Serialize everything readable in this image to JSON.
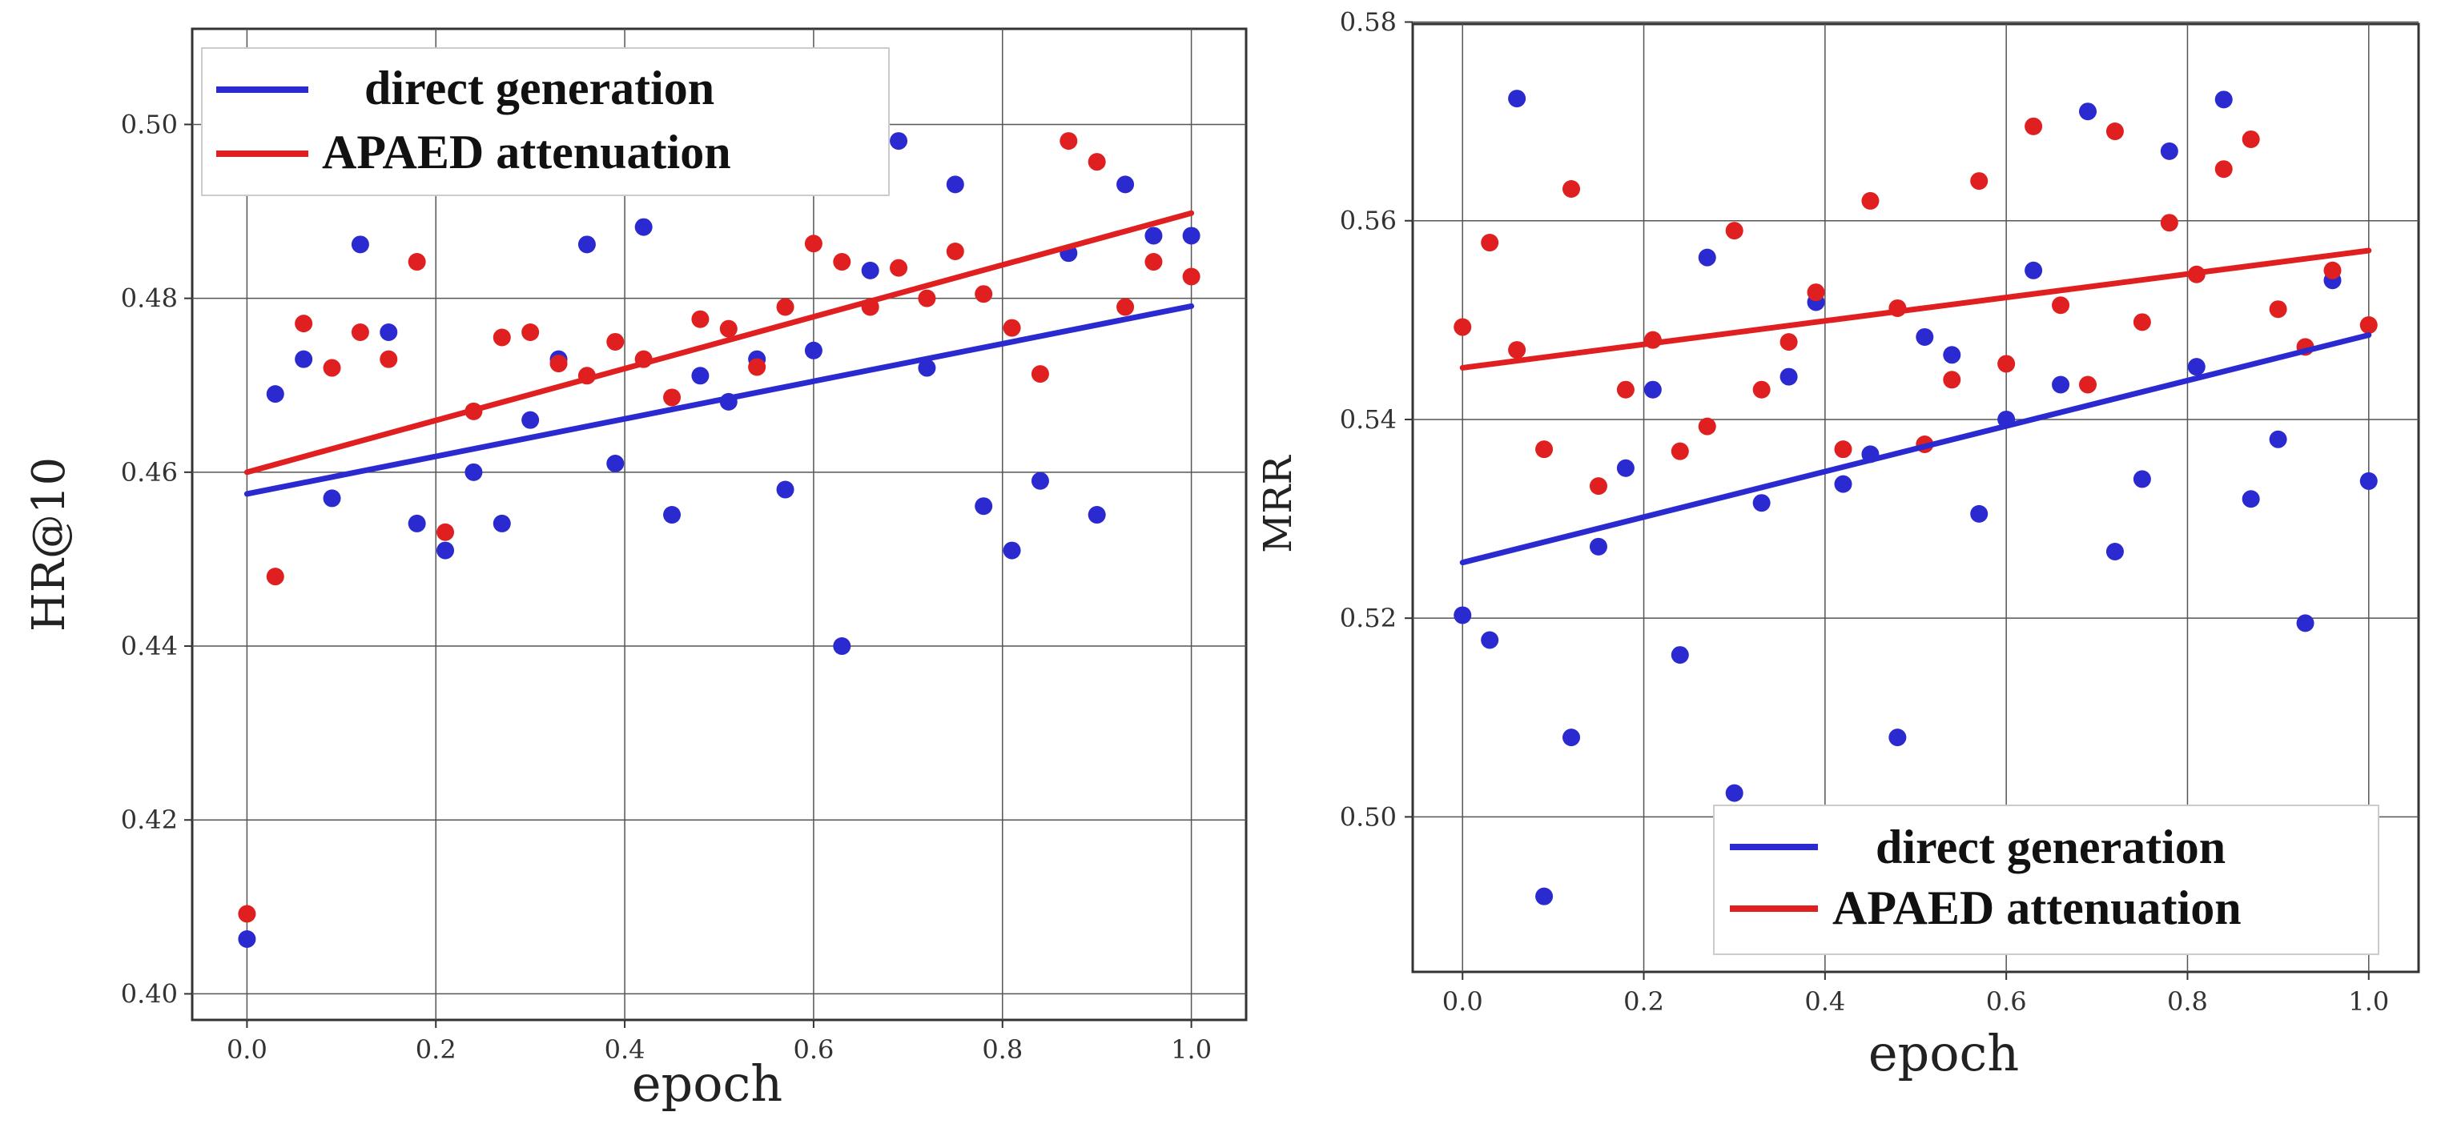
{
  "chart_data": [
    {
      "type": "scatter",
      "xlabel": "epoch",
      "ylabel": "HR@10",
      "xlim": [
        -0.058,
        1.058
      ],
      "ylim": [
        0.397,
        0.511
      ],
      "xticks": [
        0.0,
        0.2,
        0.4,
        0.6,
        0.8,
        1.0
      ],
      "xtick_labels": [
        "0.0",
        "0.2",
        "0.4",
        "0.6",
        "0.8",
        "1.0"
      ],
      "yticks": [
        0.4,
        0.42,
        0.44,
        0.46,
        0.48,
        0.5
      ],
      "ytick_labels": [
        "0.40",
        "0.42",
        "0.44",
        "0.46",
        "0.48",
        "0.50"
      ],
      "grid": true,
      "legend_position": "top-left",
      "series": [
        {
          "name": "direct generation",
          "color": "#2a2ad0",
          "points": [
            [
              0.0,
              0.4063
            ],
            [
              0.03,
              0.469
            ],
            [
              0.06,
              0.473
            ],
            [
              0.09,
              0.457
            ],
            [
              0.12,
              0.4862
            ],
            [
              0.15,
              0.4761
            ],
            [
              0.18,
              0.4541
            ],
            [
              0.21,
              0.451
            ],
            [
              0.24,
              0.46
            ],
            [
              0.27,
              0.4541
            ],
            [
              0.3,
              0.466
            ],
            [
              0.33,
              0.473
            ],
            [
              0.36,
              0.4862
            ],
            [
              0.39,
              0.461
            ],
            [
              0.42,
              0.4882
            ],
            [
              0.45,
              0.4551
            ],
            [
              0.48,
              0.4711
            ],
            [
              0.51,
              0.4681
            ],
            [
              0.54,
              0.473
            ],
            [
              0.57,
              0.458
            ],
            [
              0.6,
              0.474
            ],
            [
              0.63,
              0.44
            ],
            [
              0.66,
              0.4832
            ],
            [
              0.69,
              0.4981
            ],
            [
              0.72,
              0.472
            ],
            [
              0.75,
              0.4931
            ],
            [
              0.78,
              0.4561
            ],
            [
              0.81,
              0.451
            ],
            [
              0.84,
              0.459
            ],
            [
              0.87,
              0.4852
            ],
            [
              0.9,
              0.4551
            ],
            [
              0.93,
              0.4931
            ],
            [
              0.96,
              0.4872
            ],
            [
              1.0,
              0.4872
            ]
          ],
          "trend": [
            [
              0.0,
              0.4575
            ],
            [
              1.0,
              0.4791
            ]
          ]
        },
        {
          "name": "APAED attenuation",
          "color": "#e02020",
          "points": [
            [
              0.0,
              0.4092
            ],
            [
              0.03,
              0.448
            ],
            [
              0.06,
              0.4771
            ],
            [
              0.09,
              0.472
            ],
            [
              0.12,
              0.4761
            ],
            [
              0.15,
              0.473
            ],
            [
              0.18,
              0.4842
            ],
            [
              0.21,
              0.4531
            ],
            [
              0.24,
              0.467
            ],
            [
              0.27,
              0.4755
            ],
            [
              0.3,
              0.4761
            ],
            [
              0.33,
              0.4725
            ],
            [
              0.36,
              0.4711
            ],
            [
              0.39,
              0.475
            ],
            [
              0.42,
              0.473
            ],
            [
              0.45,
              0.4686
            ],
            [
              0.48,
              0.4776
            ],
            [
              0.51,
              0.4765
            ],
            [
              0.54,
              0.4721
            ],
            [
              0.57,
              0.479
            ],
            [
              0.6,
              0.4863
            ],
            [
              0.63,
              0.4842
            ],
            [
              0.66,
              0.479
            ],
            [
              0.69,
              0.4835
            ],
            [
              0.72,
              0.48
            ],
            [
              0.75,
              0.4854
            ],
            [
              0.78,
              0.4805
            ],
            [
              0.81,
              0.4766
            ],
            [
              0.84,
              0.4713
            ],
            [
              0.87,
              0.4981
            ],
            [
              0.9,
              0.4957
            ],
            [
              0.93,
              0.479
            ],
            [
              0.96,
              0.4842
            ],
            [
              1.0,
              0.4825
            ]
          ],
          "trend": [
            [
              0.0,
              0.46
            ],
            [
              1.0,
              0.4898
            ]
          ]
        }
      ]
    },
    {
      "type": "scatter",
      "xlabel": "epoch",
      "ylabel": "MRR",
      "xlim": [
        -0.055,
        1.055
      ],
      "ylim": [
        0.4844,
        0.5798
      ],
      "xticks": [
        0.0,
        0.2,
        0.4,
        0.6,
        0.8,
        1.0
      ],
      "xtick_labels": [
        "0.0",
        "0.2",
        "0.4",
        "0.6",
        "0.8",
        "1.0"
      ],
      "yticks": [
        0.5,
        0.52,
        0.54,
        0.56,
        0.58
      ],
      "ytick_labels": [
        "0.50",
        "0.52",
        "0.54",
        "0.56",
        "0.58"
      ],
      "grid": true,
      "legend_position": "bottom-right",
      "series": [
        {
          "name": "direct generation",
          "color": "#2a2ad0",
          "points": [
            [
              0.0,
              0.5203
            ],
            [
              0.03,
              0.5178
            ],
            [
              0.06,
              0.5723
            ],
            [
              0.09,
              0.492
            ],
            [
              0.12,
              0.508
            ],
            [
              0.15,
              0.5272
            ],
            [
              0.18,
              0.5351
            ],
            [
              0.21,
              0.543
            ],
            [
              0.24,
              0.5163
            ],
            [
              0.27,
              0.5563
            ],
            [
              0.3,
              0.5024
            ],
            [
              0.33,
              0.5316
            ],
            [
              0.36,
              0.5443
            ],
            [
              0.39,
              0.5518
            ],
            [
              0.42,
              0.5335
            ],
            [
              0.45,
              0.5365
            ],
            [
              0.48,
              0.508
            ],
            [
              0.51,
              0.5483
            ],
            [
              0.54,
              0.5465
            ],
            [
              0.57,
              0.5305
            ],
            [
              0.6,
              0.54
            ],
            [
              0.63,
              0.555
            ],
            [
              0.66,
              0.5435
            ],
            [
              0.69,
              0.571
            ],
            [
              0.72,
              0.5267
            ],
            [
              0.75,
              0.534
            ],
            [
              0.78,
              0.567
            ],
            [
              0.81,
              0.5453
            ],
            [
              0.84,
              0.5722
            ],
            [
              0.87,
              0.532
            ],
            [
              0.9,
              0.538
            ],
            [
              0.93,
              0.5195
            ],
            [
              0.96,
              0.554
            ],
            [
              1.0,
              0.5338
            ]
          ],
          "trend": [
            [
              0.0,
              0.5256
            ],
            [
              1.0,
              0.5485
            ]
          ]
        },
        {
          "name": "APAED attenuation",
          "color": "#e02020",
          "points": [
            [
              0.0,
              0.5493
            ],
            [
              0.03,
              0.5578
            ],
            [
              0.06,
              0.547
            ],
            [
              0.09,
              0.537
            ],
            [
              0.12,
              0.5632
            ],
            [
              0.15,
              0.5333
            ],
            [
              0.18,
              0.543
            ],
            [
              0.21,
              0.548
            ],
            [
              0.24,
              0.5368
            ],
            [
              0.27,
              0.5393
            ],
            [
              0.3,
              0.559
            ],
            [
              0.33,
              0.543
            ],
            [
              0.36,
              0.5478
            ],
            [
              0.39,
              0.5528
            ],
            [
              0.42,
              0.537
            ],
            [
              0.45,
              0.562
            ],
            [
              0.48,
              0.5512
            ],
            [
              0.51,
              0.5375
            ],
            [
              0.54,
              0.544
            ],
            [
              0.57,
              0.564
            ],
            [
              0.6,
              0.5456
            ],
            [
              0.63,
              0.5695
            ],
            [
              0.66,
              0.5515
            ],
            [
              0.69,
              0.5435
            ],
            [
              0.72,
              0.569
            ],
            [
              0.75,
              0.5498
            ],
            [
              0.78,
              0.5598
            ],
            [
              0.81,
              0.5546
            ],
            [
              0.84,
              0.5652
            ],
            [
              0.87,
              0.5682
            ],
            [
              0.9,
              0.5511
            ],
            [
              0.93,
              0.5473
            ],
            [
              0.96,
              0.555
            ],
            [
              1.0,
              0.5495
            ]
          ],
          "trend": [
            [
              0.0,
              0.5452
            ],
            [
              1.0,
              0.557
            ]
          ]
        }
      ]
    }
  ]
}
